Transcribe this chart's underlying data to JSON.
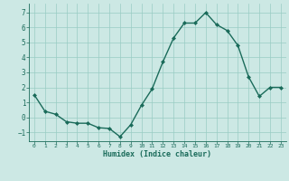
{
  "x": [
    0,
    1,
    2,
    3,
    4,
    5,
    6,
    7,
    8,
    9,
    10,
    11,
    12,
    13,
    14,
    15,
    16,
    17,
    18,
    19,
    20,
    21,
    22,
    23
  ],
  "y": [
    1.5,
    0.4,
    0.2,
    -0.3,
    -0.4,
    -0.4,
    -0.7,
    -0.75,
    -1.3,
    -0.5,
    0.8,
    1.9,
    3.7,
    5.3,
    6.3,
    6.3,
    7.0,
    6.2,
    5.8,
    4.8,
    2.7,
    1.4,
    2.0,
    2.0
  ],
  "xlabel": "Humidex (Indice chaleur)",
  "bg_color": "#cce8e4",
  "grid_color": "#99ccc4",
  "line_color": "#1a6b5a",
  "xlim": [
    -0.5,
    23.5
  ],
  "ylim": [
    -1.6,
    7.6
  ],
  "yticks": [
    -1,
    0,
    1,
    2,
    3,
    4,
    5,
    6,
    7
  ],
  "xticks": [
    0,
    1,
    2,
    3,
    4,
    5,
    6,
    7,
    8,
    9,
    10,
    11,
    12,
    13,
    14,
    15,
    16,
    17,
    18,
    19,
    20,
    21,
    22,
    23
  ]
}
